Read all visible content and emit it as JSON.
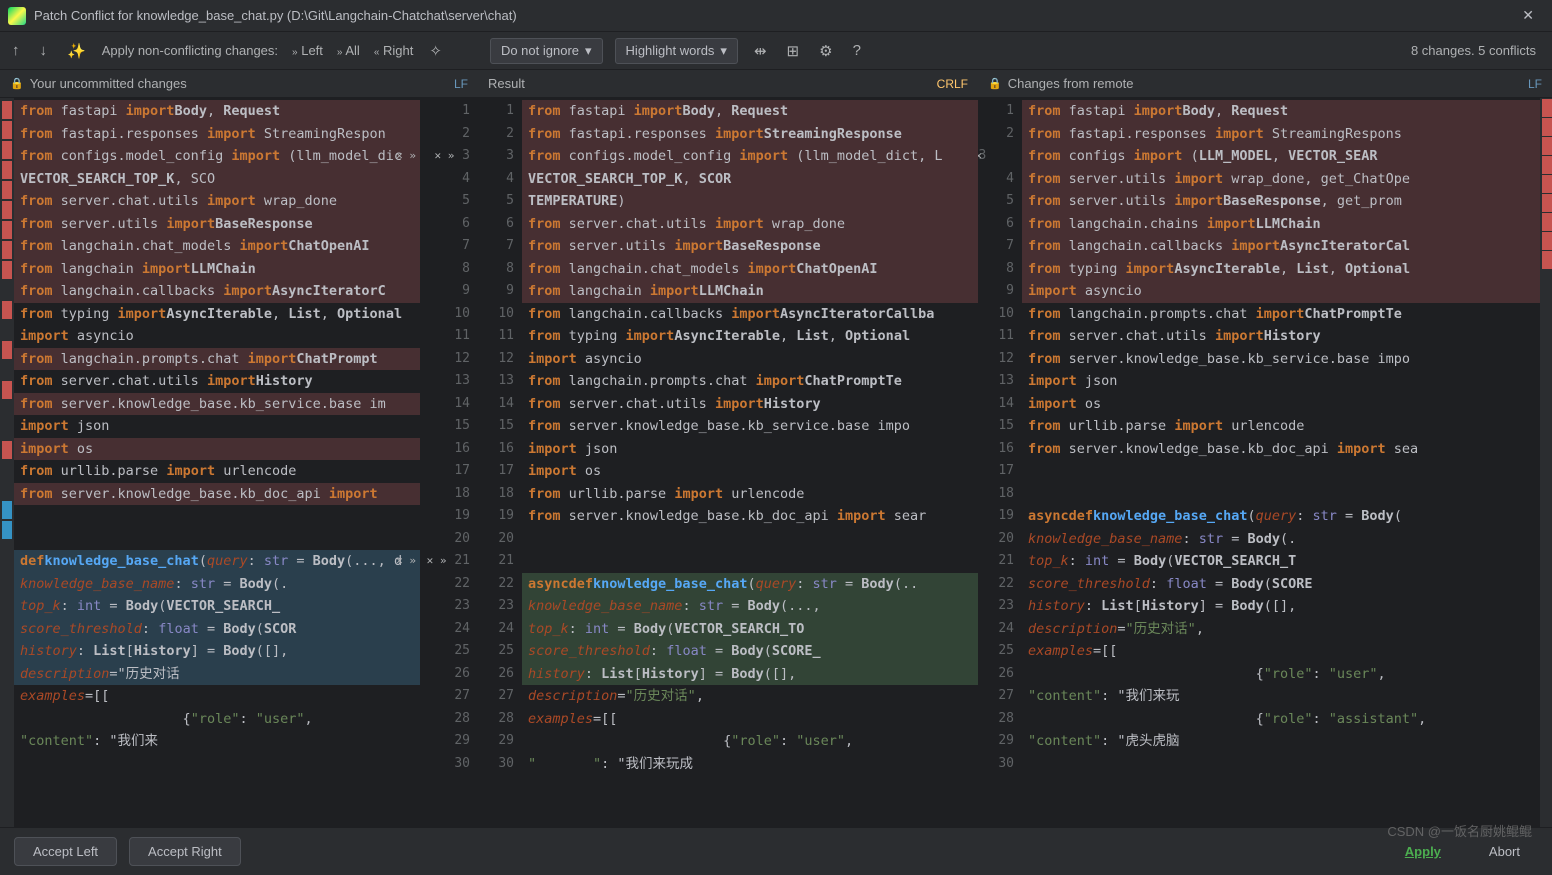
{
  "title": "Patch Conflict for knowledge_base_chat.py (D:\\Git\\Langchain-Chatchat\\server\\chat)",
  "toolbar": {
    "apply_label": "Apply non-conflicting changes:",
    "left": "Left",
    "all": "All",
    "right": "Right",
    "dd1": "Do not ignore",
    "dd2": "Highlight words"
  },
  "status": "8 changes. 5 conflicts",
  "headers": {
    "left": "Your uncommitted changes",
    "center": "Result",
    "right": "Changes from remote",
    "lf": "LF",
    "crlf": "CRLF"
  },
  "footer": {
    "accept_left": "Accept Left",
    "accept_right": "Accept Right",
    "apply": "Apply",
    "abort": "Abort"
  },
  "watermark": "CSDN @一饭名厨姚鲲鲲",
  "colors": {
    "bg_main": "#2b2d30",
    "bg_editor": "#1e1f22",
    "conflict_red": "#472f32",
    "added_blue": "#2a3f4d",
    "added_green": "#324436",
    "keyword_orange": "#cc7832",
    "string_green": "#6a8759",
    "function_blue": "#56a8f5",
    "param_brown": "#aa4926",
    "builtin_purple": "#8888c6",
    "pink": "#c77dbb",
    "lf_blue": "#6897bb",
    "crlf_yellow": "#ffc66d"
  },
  "left_code": [
    {
      "n": 1,
      "bg": "red",
      "h": "from fastapi import Body, Request"
    },
    {
      "n": 2,
      "bg": "red",
      "h": "from fastapi.responses import StreamingRespon"
    },
    {
      "n": 3,
      "bg": "red",
      "h": "from configs.model_config import (llm_model_dic",
      "ctrl": "x>>"
    },
    {
      "n": 4,
      "bg": "red",
      "h": "            VECTOR_SEARCH_TOP_K, SCO"
    },
    {
      "n": 5,
      "bg": "red",
      "h": "from server.chat.utils import wrap_done"
    },
    {
      "n": 6,
      "bg": "red",
      "h": "from server.utils import BaseResponse"
    },
    {
      "n": 7,
      "bg": "red",
      "h": "from langchain.chat_models import ChatOpenAI"
    },
    {
      "n": 8,
      "bg": "red",
      "h": "from langchain import LLMChain"
    },
    {
      "n": 9,
      "bg": "red",
      "h": "from langchain.callbacks import AsyncIteratorC"
    },
    {
      "n": 10,
      "bg": "",
      "h": "from typing import AsyncIterable, List, Optional"
    },
    {
      "n": 11,
      "bg": "",
      "h": "import asyncio"
    },
    {
      "n": 12,
      "bg": "red",
      "h": "from langchain.prompts.chat import ChatPrompt"
    },
    {
      "n": 13,
      "bg": "",
      "h": "from server.chat.utils import History"
    },
    {
      "n": 14,
      "bg": "red",
      "h": "from server.knowledge_base.kb_service.base im"
    },
    {
      "n": 15,
      "bg": "",
      "h": "import json"
    },
    {
      "n": 16,
      "bg": "red",
      "h": "import os"
    },
    {
      "n": 17,
      "bg": "",
      "h": "from urllib.parse import urlencode"
    },
    {
      "n": 18,
      "bg": "red",
      "h": "from server.knowledge_base.kb_doc_api import"
    },
    {
      "n": 19,
      "bg": "",
      "h": ""
    },
    {
      "n": 20,
      "bg": "",
      "h": ""
    },
    {
      "n": 21,
      "bg": "blue",
      "h": "def knowledge_base_chat(query: str = Body(..., d",
      "ctrl": "x>>"
    },
    {
      "n": 22,
      "bg": "blue",
      "h": "        knowledge_base_name: str = Body(."
    },
    {
      "n": 23,
      "bg": "blue",
      "h": "        top_k: int = Body(VECTOR_SEARCH_"
    },
    {
      "n": 24,
      "bg": "blue",
      "h": "        score_threshold: float = Body(SCOR"
    },
    {
      "n": 25,
      "bg": "blue",
      "h": "        history: List[History] = Body([],"
    },
    {
      "n": 26,
      "bg": "blue",
      "h": "                description=\"历史对话"
    },
    {
      "n": 27,
      "bg": "",
      "h": "                examples=[["
    },
    {
      "n": 28,
      "bg": "",
      "h": "                    {\"role\": \"user\","
    },
    {
      "n": 29,
      "bg": "",
      "h": "                     \"content\": \"我们来"
    },
    {
      "n": 30,
      "bg": "",
      "h": ""
    }
  ],
  "center_code": [
    {
      "n": 1,
      "bg": "red",
      "h": "from fastapi import Body, Request"
    },
    {
      "n": 2,
      "bg": "red",
      "h": "from fastapi.responses import StreamingResponse"
    },
    {
      "n": 3,
      "bg": "red",
      "h": "from configs.model_config import (llm_model_dict, L"
    },
    {
      "n": 4,
      "bg": "red",
      "h": "                    VECTOR_SEARCH_TOP_K, SCOR"
    },
    {
      "n": 5,
      "bg": "red",
      "h": "                    TEMPERATURE)"
    },
    {
      "n": 6,
      "bg": "red",
      "h": "from server.chat.utils import wrap_done"
    },
    {
      "n": 7,
      "bg": "red",
      "h": "from server.utils import BaseResponse"
    },
    {
      "n": 8,
      "bg": "red",
      "h": "from langchain.chat_models import ChatOpenAI"
    },
    {
      "n": 9,
      "bg": "red",
      "h": "from langchain import LLMChain"
    },
    {
      "n": 10,
      "bg": "",
      "h": "from langchain.callbacks import AsyncIteratorCallba"
    },
    {
      "n": 11,
      "bg": "",
      "h": "from typing import AsyncIterable, List, Optional"
    },
    {
      "n": 12,
      "bg": "",
      "h": "import asyncio"
    },
    {
      "n": 13,
      "bg": "",
      "h": "from langchain.prompts.chat import ChatPromptTe"
    },
    {
      "n": 14,
      "bg": "",
      "h": "from server.chat.utils import History"
    },
    {
      "n": 15,
      "bg": "",
      "h": "from server.knowledge_base.kb_service.base impo"
    },
    {
      "n": 16,
      "bg": "",
      "h": "import json"
    },
    {
      "n": 17,
      "bg": "",
      "h": "import os"
    },
    {
      "n": 18,
      "bg": "",
      "h": "from urllib.parse import urlencode"
    },
    {
      "n": 19,
      "bg": "",
      "h": "from server.knowledge_base.kb_doc_api import sear"
    },
    {
      "n": 20,
      "bg": "",
      "h": ""
    },
    {
      "n": 21,
      "bg": "",
      "h": ""
    },
    {
      "n": 22,
      "bg": "green",
      "h": "async def knowledge_base_chat(query: str = Body(.."
    },
    {
      "n": 23,
      "bg": "green",
      "h": "            knowledge_base_name: str = Body(...,"
    },
    {
      "n": 24,
      "bg": "green",
      "h": "            top_k: int = Body(VECTOR_SEARCH_TO"
    },
    {
      "n": 25,
      "bg": "green",
      "h": "            score_threshold: float = Body(SCORE_"
    },
    {
      "n": 26,
      "bg": "green",
      "h": "            history: List[History] = Body([],"
    },
    {
      "n": 27,
      "bg": "",
      "h": "                    description=\"历史对话\","
    },
    {
      "n": 28,
      "bg": "",
      "h": "                    examples=[["
    },
    {
      "n": 29,
      "bg": "",
      "h": "                        {\"role\": \"user\","
    },
    {
      "n": 30,
      "bg": "",
      "h": "                         \"       \": \"我们来玩成"
    }
  ],
  "right_code": [
    {
      "n": 1,
      "bg": "red",
      "h": "from fastapi import Body, Request"
    },
    {
      "n": 2,
      "bg": "red",
      "h": "from fastapi.responses import StreamingRespons"
    },
    {
      "n": 3,
      "bg": "red",
      "h": "from configs import (LLM_MODEL, VECTOR_SEAR",
      "ctrl": "<<x"
    },
    {
      "n": 4,
      "bg": "red",
      "h": "from server.utils import wrap_done, get_ChatOpe"
    },
    {
      "n": 5,
      "bg": "red",
      "h": "from server.utils import BaseResponse, get_prom"
    },
    {
      "n": 6,
      "bg": "red",
      "h": "from langchain.chains import LLMChain"
    },
    {
      "n": 7,
      "bg": "red",
      "h": "from langchain.callbacks import AsyncIteratorCal"
    },
    {
      "n": 8,
      "bg": "red",
      "h": "from typing import AsyncIterable, List, Optional"
    },
    {
      "n": 9,
      "bg": "red",
      "h": "import asyncio"
    },
    {
      "n": 10,
      "bg": "",
      "h": "from langchain.prompts.chat import ChatPromptTe"
    },
    {
      "n": 11,
      "bg": "",
      "h": "from server.chat.utils import History"
    },
    {
      "n": 12,
      "bg": "",
      "h": "from server.knowledge_base.kb_service.base impo"
    },
    {
      "n": 13,
      "bg": "",
      "h": "import json"
    },
    {
      "n": 14,
      "bg": "",
      "h": "import os"
    },
    {
      "n": 15,
      "bg": "",
      "h": "from urllib.parse import urlencode"
    },
    {
      "n": 16,
      "bg": "",
      "h": "from server.knowledge_base.kb_doc_api import sea"
    },
    {
      "n": 17,
      "bg": "",
      "h": ""
    },
    {
      "n": 18,
      "bg": "",
      "h": ""
    },
    {
      "n": 19,
      "bg": "",
      "h": "async def knowledge_base_chat(query: str = Body("
    },
    {
      "n": 20,
      "bg": "",
      "h": "                knowledge_base_name: str = Body(."
    },
    {
      "n": 21,
      "bg": "",
      "h": "                top_k: int = Body(VECTOR_SEARCH_T"
    },
    {
      "n": 22,
      "bg": "",
      "h": "                score_threshold: float = Body(SCORE"
    },
    {
      "n": 23,
      "bg": "",
      "h": "                history: List[History] = Body([],"
    },
    {
      "n": 24,
      "bg": "",
      "h": "                        description=\"历史对话\","
    },
    {
      "n": 25,
      "bg": "",
      "h": "                        examples=[["
    },
    {
      "n": 26,
      "bg": "",
      "h": "                            {\"role\": \"user\","
    },
    {
      "n": 27,
      "bg": "",
      "h": "                             \"content\": \"我们来玩"
    },
    {
      "n": 28,
      "bg": "",
      "h": "                            {\"role\": \"assistant\","
    },
    {
      "n": 29,
      "bg": "",
      "h": "                             \"content\": \"虎头虎脑"
    },
    {
      "n": 30,
      "bg": "",
      "h": ""
    }
  ],
  "left_stripe": [
    "#c75450",
    "#c75450",
    "#c75450",
    "#c75450",
    "#c75450",
    "#c75450",
    "#c75450",
    "#c75450",
    "#c75450",
    "",
    "#c75450",
    "",
    "#c75450",
    "",
    "#c75450",
    "",
    "",
    "#c75450",
    "",
    "",
    "#3592c4",
    "#3592c4",
    "",
    "",
    "",
    "",
    "",
    "",
    ""
  ],
  "right_stripe": [
    "#c75450",
    "#c75450",
    "#c75450",
    "#c75450",
    "#c75450",
    "#c75450",
    "#c75450",
    "#c75450",
    "#c75450",
    "",
    "",
    "",
    "",
    "",
    "",
    "",
    "",
    "",
    "",
    "",
    "",
    "",
    "",
    "",
    "",
    "",
    "",
    "",
    ""
  ]
}
